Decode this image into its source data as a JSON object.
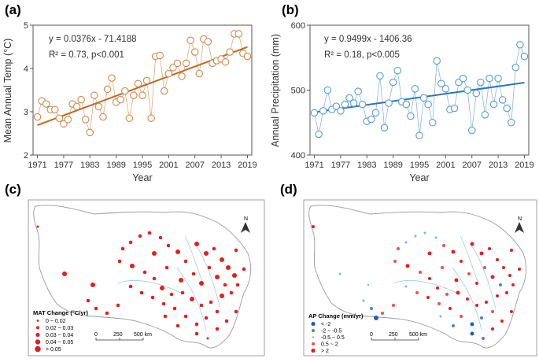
{
  "chart_data": [
    {
      "panel": "(a)",
      "type": "line",
      "xlabel": "Year",
      "ylabel": "Mean Annual Temp (°C)",
      "xlim": [
        1970,
        2020
      ],
      "ylim": [
        2,
        5
      ],
      "xticks": [
        "1971",
        "1977",
        "1983",
        "1989",
        "1995",
        "2001",
        "2007",
        "2013",
        "2019"
      ],
      "yticks": [
        "2",
        "3",
        "4",
        "5"
      ],
      "color": "#d08a4e",
      "trend_color": "#c8651f",
      "equation": "y = 0.0376x - 71.4188",
      "r2": "R² = 0.73, p<0.001",
      "trend": {
        "slope": 0.0376,
        "intercept": -71.4188
      },
      "x": [
        1971,
        1972,
        1973,
        1974,
        1975,
        1976,
        1977,
        1978,
        1979,
        1980,
        1981,
        1982,
        1983,
        1984,
        1985,
        1986,
        1987,
        1988,
        1989,
        1990,
        1991,
        1992,
        1993,
        1994,
        1995,
        1996,
        1997,
        1998,
        1999,
        2000,
        2001,
        2002,
        2003,
        2004,
        2005,
        2006,
        2007,
        2008,
        2009,
        2010,
        2011,
        2012,
        2013,
        2014,
        2015,
        2016,
        2017,
        2018,
        2019
      ],
      "values": [
        2.88,
        3.25,
        3.18,
        3.05,
        3.05,
        2.85,
        2.72,
        2.82,
        3.18,
        3.12,
        3.28,
        2.82,
        2.52,
        3.38,
        3.12,
        2.88,
        3.52,
        3.78,
        3.22,
        3.28,
        3.48,
        2.85,
        3.38,
        3.65,
        3.38,
        3.72,
        2.85,
        4.28,
        4.3,
        3.48,
        3.88,
        4.02,
        4.12,
        3.82,
        4.12,
        4.65,
        4.38,
        3.88,
        4.68,
        4.62,
        4.12,
        4.18,
        4.22,
        4.15,
        4.38,
        4.8,
        4.8,
        4.35,
        4.28
      ]
    },
    {
      "panel": "(b)",
      "type": "line",
      "xlabel": "Year",
      "ylabel": "Annual Precipitation (mm)",
      "xlim": [
        1970,
        2020
      ],
      "ylim": [
        400,
        600
      ],
      "xticks": [
        "1971",
        "1977",
        "1983",
        "1989",
        "1995",
        "2001",
        "2007",
        "2013",
        "2019"
      ],
      "yticks": [
        "400",
        "500",
        "600"
      ],
      "color": "#5b9bd5",
      "trend_color": "#2e75b6",
      "equation": "y = 0.9499x - 1406.36",
      "r2": "R² = 0.18, p<0.005",
      "trend": {
        "slope": 0.9499,
        "intercept": -1406.36
      },
      "x": [
        1971,
        1972,
        1973,
        1974,
        1975,
        1976,
        1977,
        1978,
        1979,
        1980,
        1981,
        1982,
        1983,
        1984,
        1985,
        1986,
        1987,
        1988,
        1989,
        1990,
        1991,
        1992,
        1993,
        1994,
        1995,
        1996,
        1997,
        1998,
        1999,
        2000,
        2001,
        2002,
        2003,
        2004,
        2005,
        2006,
        2007,
        2008,
        2009,
        2010,
        2011,
        2012,
        2013,
        2014,
        2015,
        2016,
        2017,
        2018,
        2019
      ],
      "values": [
        465,
        432,
        468,
        500,
        470,
        475,
        468,
        478,
        488,
        480,
        498,
        478,
        452,
        455,
        465,
        522,
        442,
        480,
        512,
        530,
        482,
        478,
        460,
        502,
        430,
        488,
        478,
        450,
        545,
        510,
        502,
        470,
        472,
        512,
        518,
        500,
        438,
        495,
        512,
        462,
        518,
        478,
        518,
        485,
        472,
        450,
        535,
        570,
        552
      ]
    },
    {
      "panel": "(c)",
      "type": "map",
      "legend_title": "MAT Change (°C/yr)",
      "legend": [
        "0 ~ 0.02",
        "0.02 ~ 0.03",
        "0.03 ~ 0.04",
        "0.04 ~ 0.05",
        "> 0.05"
      ],
      "scale": [
        "0",
        "250",
        "500 km"
      ],
      "north": "N",
      "color": "#e02020"
    },
    {
      "panel": "(d)",
      "type": "map",
      "legend_title": "AP Change (mm/yr)",
      "legend": [
        "< -2",
        "-2 ~ -0.5",
        "-0.5 ~ 0.5",
        "0.5 ~ 2",
        "> 2"
      ],
      "legend_colors": [
        "#1f5fb0",
        "#4a86c8",
        "#8ab0d8",
        "#e85050",
        "#e02020"
      ],
      "scale": [
        "0",
        "250",
        "500 km"
      ],
      "north": "N"
    }
  ]
}
